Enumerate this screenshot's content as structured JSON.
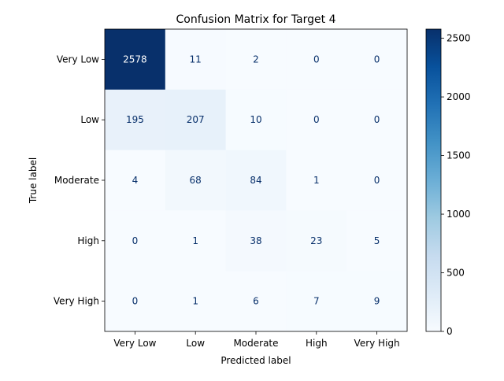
{
  "chart_data": {
    "type": "heatmap",
    "title": "Confusion Matrix for Target 4",
    "xlabel": "Predicted label",
    "ylabel": "True label",
    "categories": [
      "Very Low",
      "Low",
      "Moderate",
      "High",
      "Very High"
    ],
    "values": [
      [
        2578,
        11,
        2,
        0,
        0
      ],
      [
        195,
        207,
        10,
        0,
        0
      ],
      [
        4,
        68,
        84,
        1,
        0
      ],
      [
        0,
        1,
        38,
        23,
        5
      ],
      [
        0,
        1,
        6,
        7,
        9
      ]
    ],
    "colorbar": {
      "ticks": [
        "0",
        "500",
        "1000",
        "1500",
        "2000",
        "2500"
      ],
      "tick_values": [
        0,
        500,
        1000,
        1500,
        2000,
        2500
      ],
      "range": [
        0,
        2578
      ],
      "colormap": "Blues"
    },
    "grid": false
  }
}
